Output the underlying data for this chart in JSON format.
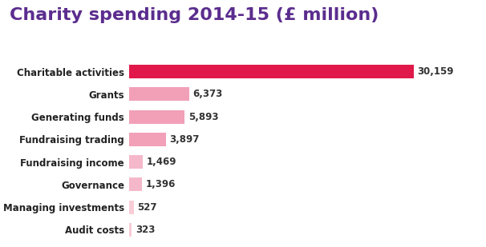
{
  "title": "Charity spending 2014-15 (£ million)",
  "title_color": "#5b2d8e",
  "title_fontsize": 16,
  "categories": [
    "Charitable activities",
    "Grants",
    "Generating funds",
    "Fundraising trading",
    "Fundraising income",
    "Governance",
    "Managing investments",
    "Audit costs"
  ],
  "values": [
    30159,
    6373,
    5893,
    3897,
    1469,
    1396,
    527,
    323
  ],
  "bar_colors": [
    "#e0194a",
    "#f2a0b8",
    "#f2a0b8",
    "#f2a0b8",
    "#f5b8ca",
    "#f5b8ca",
    "#f8cdd8",
    "#f8cdd8"
  ],
  "label_color": "#222222",
  "value_color": "#333333",
  "label_fontsize": 8.5,
  "value_fontsize": 8.5,
  "background_color": "#ffffff",
  "bar_height": 0.6,
  "xlim_max": 36000
}
